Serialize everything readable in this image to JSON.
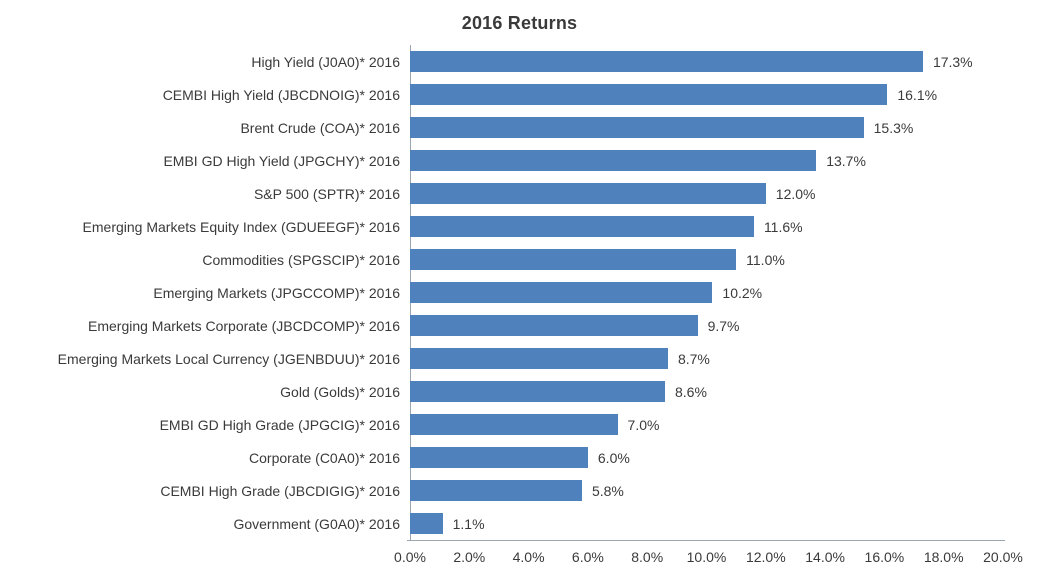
{
  "chart": {
    "bar_color": "#4F81BD",
    "axis_line_color": "#9BA5B0",
    "text_color": "#3A3A3A",
    "background_color": "#FFFFFF"
  },
  "chart_data": {
    "type": "bar",
    "orientation": "horizontal",
    "title": "2016 Returns",
    "xlabel": "",
    "ylabel": "",
    "xlim": [
      0,
      20
    ],
    "grid": false,
    "legend": false,
    "x_ticks": [
      "0.0%",
      "2.0%",
      "4.0%",
      "6.0%",
      "8.0%",
      "10.0%",
      "12.0%",
      "14.0%",
      "16.0%",
      "18.0%",
      "20.0%"
    ],
    "categories": [
      "High Yield (J0A0)* 2016",
      "CEMBI High Yield (JBCDNOIG)* 2016",
      "Brent Crude (COA)* 2016",
      "EMBI GD High Yield (JPGCHY)* 2016",
      "S&P 500 (SPTR)* 2016",
      "Emerging Markets Equity Index (GDUEEGF)* 2016",
      "Commodities (SPGSCIP)* 2016",
      "Emerging Markets (JPGCCOMP)* 2016",
      "Emerging Markets Corporate (JBCDCOMP)* 2016",
      "Emerging Markets Local Currency (JGENBDUU)* 2016",
      "Gold (Golds)* 2016",
      "EMBI GD High Grade (JPGCIG)* 2016",
      "Corporate (C0A0)* 2016",
      "CEMBI High Grade (JBCDIGIG)* 2016",
      "Government (G0A0)* 2016"
    ],
    "values": [
      17.3,
      16.1,
      15.3,
      13.7,
      12.0,
      11.6,
      11.0,
      10.2,
      9.7,
      8.7,
      8.6,
      7.0,
      6.0,
      5.8,
      1.1
    ],
    "value_labels": [
      "17.3%",
      "16.1%",
      "15.3%",
      "13.7%",
      "12.0%",
      "11.6%",
      "11.0%",
      "10.2%",
      "9.7%",
      "8.7%",
      "8.6%",
      "7.0%",
      "6.0%",
      "5.8%",
      "1.1%"
    ]
  }
}
